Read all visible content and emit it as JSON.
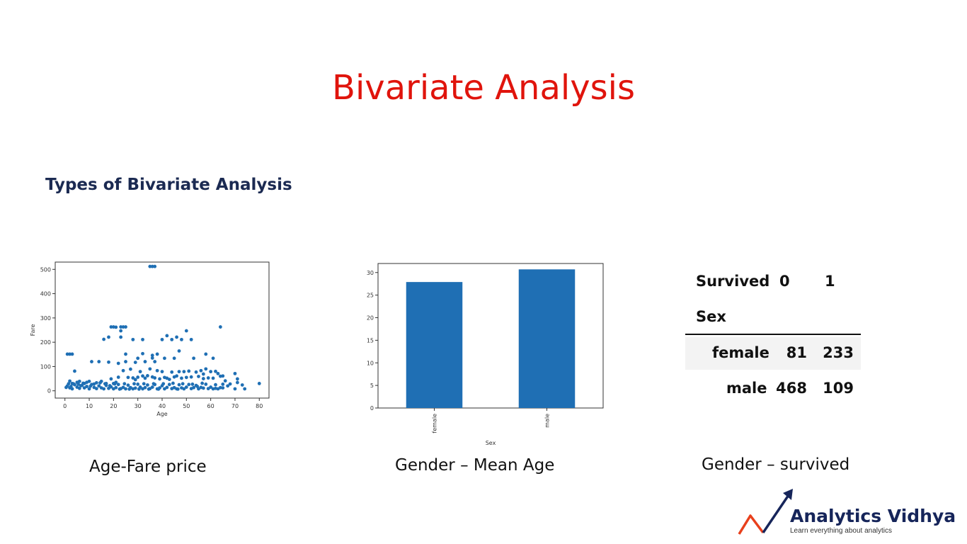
{
  "slide": {
    "title": "Bivariate Analysis",
    "subtitle": "Types of Bivariate Analysis",
    "captions": [
      "Age-Fare price",
      "Gender – Mean Age",
      "Gender – survived"
    ]
  },
  "colors": {
    "title": "#e0140c",
    "subtitle": "#1b2a52",
    "series": "#1f6fb4",
    "logo_arrow_red": "#e8401c",
    "logo_arrow_blue": "#16255a"
  },
  "chart_data": [
    {
      "type": "scatter",
      "xlabel": "Age",
      "ylabel": "Fare",
      "xlim": [
        -4,
        84
      ],
      "ylim": [
        -30,
        530
      ],
      "xticks": [
        0,
        10,
        20,
        30,
        40,
        50,
        60,
        70,
        80
      ],
      "yticks": [
        0,
        100,
        200,
        300,
        400,
        500
      ],
      "points": [
        [
          35,
          512
        ],
        [
          36,
          512
        ],
        [
          37,
          512
        ],
        [
          19,
          263
        ],
        [
          20,
          263
        ],
        [
          23,
          263
        ],
        [
          24,
          263
        ],
        [
          25,
          263
        ],
        [
          64,
          263
        ],
        [
          21,
          262
        ],
        [
          23,
          247
        ],
        [
          50,
          247
        ],
        [
          18,
          221
        ],
        [
          23,
          221
        ],
        [
          42,
          227
        ],
        [
          46,
          221
        ],
        [
          16,
          212
        ],
        [
          28,
          211
        ],
        [
          32,
          211
        ],
        [
          40,
          211
        ],
        [
          44,
          211
        ],
        [
          48,
          211
        ],
        [
          52,
          211
        ],
        [
          25,
          151
        ],
        [
          1,
          151
        ],
        [
          2,
          151
        ],
        [
          3,
          151
        ],
        [
          38,
          151
        ],
        [
          58,
          151
        ],
        [
          32,
          153
        ],
        [
          36,
          146
        ],
        [
          47,
          164
        ],
        [
          36,
          135
        ],
        [
          22,
          113
        ],
        [
          11,
          120
        ],
        [
          14,
          120
        ],
        [
          18,
          118
        ],
        [
          25,
          120
        ],
        [
          30,
          134
        ],
        [
          33,
          120
        ],
        [
          41,
          134
        ],
        [
          45,
          134
        ],
        [
          53,
          134
        ],
        [
          29,
          117
        ],
        [
          61,
          134
        ],
        [
          37,
          120
        ],
        [
          4,
          81
        ],
        [
          24,
          83
        ],
        [
          27,
          89
        ],
        [
          31,
          79
        ],
        [
          35,
          90
        ],
        [
          38,
          83
        ],
        [
          40,
          79
        ],
        [
          44,
          77
        ],
        [
          47,
          79
        ],
        [
          49,
          79
        ],
        [
          51,
          81
        ],
        [
          56,
          83
        ],
        [
          58,
          90
        ],
        [
          62,
          80
        ],
        [
          70,
          71
        ],
        [
          71,
          49
        ],
        [
          65,
          61
        ],
        [
          63,
          71
        ],
        [
          54,
          77
        ],
        [
          60,
          79
        ],
        [
          57,
          69
        ],
        [
          2,
          40
        ],
        [
          3,
          30
        ],
        [
          5,
          35
        ],
        [
          6,
          39
        ],
        [
          8,
          30
        ],
        [
          9,
          35
        ],
        [
          10,
          39
        ],
        [
          12,
          28
        ],
        [
          13,
          33
        ],
        [
          15,
          39
        ],
        [
          17,
          30
        ],
        [
          19,
          49
        ],
        [
          20,
          30
        ],
        [
          21,
          35
        ],
        [
          22,
          56
        ],
        [
          26,
          55
        ],
        [
          28,
          53
        ],
        [
          29,
          46
        ],
        [
          30,
          56
        ],
        [
          32,
          61
        ],
        [
          33,
          52
        ],
        [
          34,
          62
        ],
        [
          36,
          57
        ],
        [
          37,
          53
        ],
        [
          39,
          49
        ],
        [
          41,
          55
        ],
        [
          42,
          52
        ],
        [
          43,
          47
        ],
        [
          45,
          57
        ],
        [
          46,
          61
        ],
        [
          48,
          52
        ],
        [
          50,
          55
        ],
        [
          52,
          57
        ],
        [
          55,
          59
        ],
        [
          57,
          50
        ],
        [
          59,
          53
        ],
        [
          61,
          52
        ],
        [
          64,
          60
        ],
        [
          66,
          41
        ],
        [
          68,
          28
        ],
        [
          71,
          34
        ],
        [
          74,
          8
        ],
        [
          80,
          30
        ],
        [
          70,
          8
        ],
        [
          65,
          12
        ],
        [
          62,
          10
        ],
        [
          67,
          20
        ],
        [
          73,
          24
        ],
        [
          1,
          20
        ],
        [
          2,
          12
        ],
        [
          3,
          8
        ],
        [
          4,
          25
        ],
        [
          5,
          15
        ],
        [
          6,
          10
        ],
        [
          7,
          22
        ],
        [
          8,
          12
        ],
        [
          9,
          18
        ],
        [
          10,
          8
        ],
        [
          11,
          26
        ],
        [
          12,
          14
        ],
        [
          13,
          9
        ],
        [
          14,
          20
        ],
        [
          15,
          12
        ],
        [
          16,
          8
        ],
        [
          17,
          22
        ],
        [
          18,
          10
        ],
        [
          19,
          16
        ],
        [
          20,
          8
        ],
        [
          21,
          13
        ],
        [
          22,
          26
        ],
        [
          23,
          9
        ],
        [
          24,
          14
        ],
        [
          25,
          8
        ],
        [
          26,
          23
        ],
        [
          27,
          13
        ],
        [
          28,
          8
        ],
        [
          29,
          11
        ],
        [
          30,
          27
        ],
        [
          31,
          15
        ],
        [
          32,
          8
        ],
        [
          33,
          13
        ],
        [
          34,
          24
        ],
        [
          35,
          9
        ],
        [
          36,
          15
        ],
        [
          37,
          26
        ],
        [
          38,
          8
        ],
        [
          39,
          12
        ],
        [
          40,
          21
        ],
        [
          41,
          8
        ],
        [
          42,
          14
        ],
        [
          43,
          26
        ],
        [
          44,
          9
        ],
        [
          45,
          13
        ],
        [
          46,
          8
        ],
        [
          47,
          25
        ],
        [
          48,
          12
        ],
        [
          49,
          8
        ],
        [
          50,
          15
        ],
        [
          51,
          26
        ],
        [
          52,
          9
        ],
        [
          53,
          13
        ],
        [
          54,
          22
        ],
        [
          55,
          8
        ],
        [
          56,
          14
        ],
        [
          57,
          11
        ],
        [
          58,
          27
        ],
        [
          59,
          9
        ],
        [
          60,
          15
        ],
        [
          61,
          8
        ],
        [
          62,
          25
        ],
        [
          63,
          8
        ],
        [
          64,
          13
        ],
        [
          65,
          27
        ],
        [
          0.5,
          14
        ],
        [
          1.5,
          29
        ],
        [
          2.5,
          18
        ],
        [
          3.5,
          29
        ],
        [
          5.5,
          27
        ],
        [
          6.5,
          21
        ],
        [
          7.5,
          31
        ],
        [
          10.5,
          19
        ],
        [
          14.5,
          33
        ],
        [
          16.5,
          29
        ],
        [
          18.5,
          21
        ],
        [
          20.5,
          28
        ],
        [
          22.5,
          7
        ],
        [
          24.5,
          29
        ],
        [
          26.5,
          7
        ],
        [
          28.5,
          29
        ],
        [
          30.5,
          7
        ],
        [
          32.5,
          29
        ],
        [
          34.5,
          7
        ],
        [
          36.5,
          29
        ],
        [
          38.5,
          7
        ],
        [
          40.5,
          29
        ],
        [
          44.5,
          31
        ],
        [
          46.5,
          7
        ],
        [
          48.5,
          29
        ],
        [
          52.5,
          27
        ],
        [
          54.5,
          18
        ],
        [
          56.5,
          31
        ]
      ]
    },
    {
      "type": "bar",
      "categories": [
        "female",
        "male"
      ],
      "values": [
        27.9,
        30.7
      ],
      "xlabel": "Sex",
      "ylabel": "",
      "ylim": [
        0,
        32
      ],
      "yticks": [
        0,
        5,
        10,
        15,
        20,
        25,
        30
      ]
    },
    {
      "type": "table",
      "columns_name": "Survived",
      "index_name": "Sex",
      "columns": [
        "0",
        "1"
      ],
      "rows": [
        {
          "label": "female",
          "values": [
            81,
            233
          ]
        },
        {
          "label": "male",
          "values": [
            468,
            109
          ]
        }
      ]
    }
  ],
  "logo": {
    "name": "Analytics Vidhya",
    "tagline": "Learn everything about analytics"
  }
}
